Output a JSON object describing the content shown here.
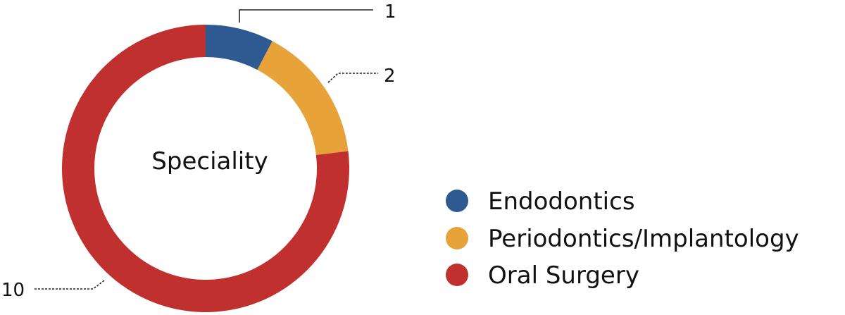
{
  "chart_data": {
    "type": "pie",
    "style": "donut",
    "title": "Speciality",
    "categories": [
      "Endodontics",
      "Periodontics/Implantology",
      "Oral Surgery"
    ],
    "values": [
      1,
      2,
      10
    ],
    "data_labels": [
      "1",
      "2",
      "10"
    ],
    "colors": [
      "#2e5a91",
      "#e8a23a",
      "#c0302f"
    ],
    "legend_position": "right",
    "start_angle_deg": 0,
    "direction": "clockwise"
  }
}
